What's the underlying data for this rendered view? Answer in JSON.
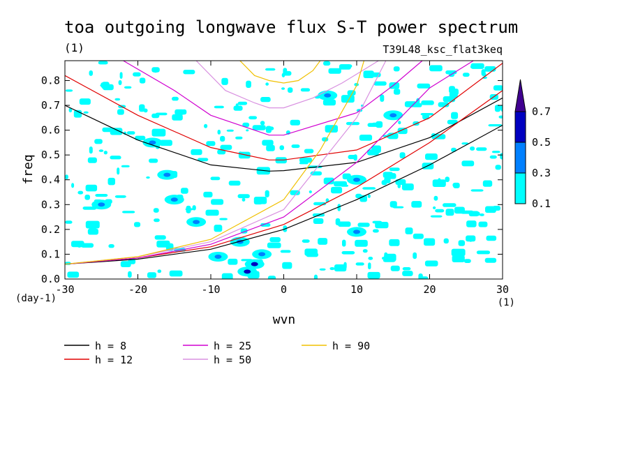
{
  "header": {
    "title": "toa outgoing longwave flux S-T power spectrum",
    "units": "(1)",
    "run_id": "T39L48_ksc_flat3keq"
  },
  "colors": {
    "contour_fill": [
      "#00ffff",
      "#0080ff",
      "#0000c0",
      "#400090"
    ],
    "h8": "#000000",
    "h12": "#e00000",
    "h25": "#d000d0",
    "h50": "#d890e0",
    "h90": "#f0c000"
  },
  "chart_data": {
    "type": "line",
    "title": "toa outgoing longwave flux S-T power spectrum",
    "xlabel": "wvn",
    "ylabel": "freq",
    "xunits": "(1)",
    "yunits": "(day-1)",
    "xlim": [
      -30,
      30
    ],
    "ylim": [
      0,
      0.88
    ],
    "xticks": [
      -30,
      -20,
      -10,
      0,
      10,
      20,
      30
    ],
    "yticks": [
      0.0,
      0.1,
      0.2,
      0.3,
      0.4,
      0.5,
      0.6,
      0.7,
      0.8
    ],
    "xtick_labels": [
      "-30",
      "-20",
      "-10",
      "0",
      "10",
      "20",
      "30"
    ],
    "ytick_labels": [
      "0.0",
      "0.1",
      "0.2",
      "0.3",
      "0.4",
      "0.5",
      "0.6",
      "0.7",
      "0.8"
    ],
    "grid": false,
    "legend_position": "bottom",
    "colorbar": {
      "levels": [
        "0.1",
        "0.3",
        "0.5",
        "0.7"
      ],
      "fill_colors": [
        "#00ffff",
        "#0080ff",
        "#0000c0",
        "#400090"
      ]
    },
    "series": [
      {
        "name": "h =  8",
        "color": "#000000",
        "curves": [
          {
            "kind": "gravity-n1",
            "x": [
              -30,
              -20,
              -10,
              -2,
              0,
              10,
              20,
              30
            ],
            "y": [
              0.7,
              0.56,
              0.46,
              0.435,
              0.437,
              0.47,
              0.57,
              0.73
            ]
          },
          {
            "kind": "kelvin",
            "x": [
              -30,
              -20,
              -10,
              0,
              10,
              20,
              30
            ],
            "y": [
              0.06,
              0.08,
              0.12,
              0.2,
              0.32,
              0.46,
              0.62
            ]
          }
        ]
      },
      {
        "name": "h = 12",
        "color": "#e00000",
        "curves": [
          {
            "kind": "gravity-n1",
            "x": [
              -30,
              -20,
              -10,
              -2,
              0,
              10,
              20,
              30
            ],
            "y": [
              0.82,
              0.66,
              0.53,
              0.48,
              0.48,
              0.52,
              0.65,
              0.87
            ]
          },
          {
            "kind": "kelvin",
            "x": [
              -30,
              -20,
              -10,
              0,
              10,
              20,
              30
            ],
            "y": [
              0.06,
              0.085,
              0.13,
              0.22,
              0.37,
              0.55,
              0.76
            ]
          }
        ]
      },
      {
        "name": "h = 25",
        "color": "#d000d0",
        "curves": [
          {
            "kind": "gravity-n1",
            "x": [
              -22,
              -15,
              -10,
              -2,
              0,
              10,
              15,
              19
            ],
            "y": [
              0.88,
              0.76,
              0.66,
              0.58,
              0.58,
              0.67,
              0.78,
              0.88
            ]
          },
          {
            "kind": "kelvin",
            "x": [
              -30,
              -20,
              -10,
              0,
              10,
              20,
              26
            ],
            "y": [
              0.06,
              0.085,
              0.14,
              0.25,
              0.47,
              0.77,
              0.88
            ]
          }
        ]
      },
      {
        "name": "h = 50",
        "color": "#d890e0",
        "curves": [
          {
            "kind": "gravity-n1",
            "x": [
              -12,
              -8,
              -4,
              -2,
              0,
              4,
              8,
              13
            ],
            "y": [
              0.88,
              0.76,
              0.71,
              0.69,
              0.69,
              0.73,
              0.79,
              0.88
            ]
          },
          {
            "kind": "kelvin",
            "x": [
              -30,
              -20,
              -10,
              0,
              10,
              14
            ],
            "y": [
              0.06,
              0.09,
              0.15,
              0.28,
              0.65,
              0.88
            ]
          }
        ]
      },
      {
        "name": "h = 90",
        "color": "#f0c000",
        "curves": [
          {
            "kind": "gravity-n1",
            "x": [
              -6,
              -4,
              -2,
              0,
              2,
              4,
              5
            ],
            "y": [
              0.88,
              0.82,
              0.8,
              0.79,
              0.8,
              0.84,
              0.88
            ]
          },
          {
            "kind": "kelvin",
            "x": [
              -30,
              -20,
              -10,
              0,
              5,
              10,
              11
            ],
            "y": [
              0.06,
              0.09,
              0.16,
              0.32,
              0.52,
              0.78,
              0.88
            ]
          }
        ]
      }
    ],
    "contour_patches": [
      {
        "x": -4,
        "y": 0.06,
        "level": 2
      },
      {
        "x": -5,
        "y": 0.03,
        "level": 2
      },
      {
        "x": -9,
        "y": 0.09,
        "level": 1
      },
      {
        "x": -15,
        "y": 0.32,
        "level": 1
      },
      {
        "x": -16,
        "y": 0.42,
        "level": 1
      },
      {
        "x": -12,
        "y": 0.23,
        "level": 1
      },
      {
        "x": -18,
        "y": 0.55,
        "level": 1
      },
      {
        "x": -3,
        "y": 0.1,
        "level": 1
      },
      {
        "x": 15,
        "y": 0.66,
        "level": 1
      },
      {
        "x": 10,
        "y": 0.19,
        "level": 1
      },
      {
        "x": -25,
        "y": 0.3,
        "level": 1
      },
      {
        "x": 6,
        "y": 0.74,
        "level": 1
      },
      {
        "x": 10,
        "y": 0.4,
        "level": 1
      },
      {
        "x": -6,
        "y": 0.15,
        "level": 1
      }
    ]
  },
  "legend": {
    "items": [
      {
        "label": "h =  8",
        "color": "#000000"
      },
      {
        "label": "h = 12",
        "color": "#e00000"
      },
      {
        "label": "h = 25",
        "color": "#d000d0"
      },
      {
        "label": "h = 50",
        "color": "#d890e0"
      },
      {
        "label": "h = 90",
        "color": "#f0c000"
      }
    ]
  }
}
